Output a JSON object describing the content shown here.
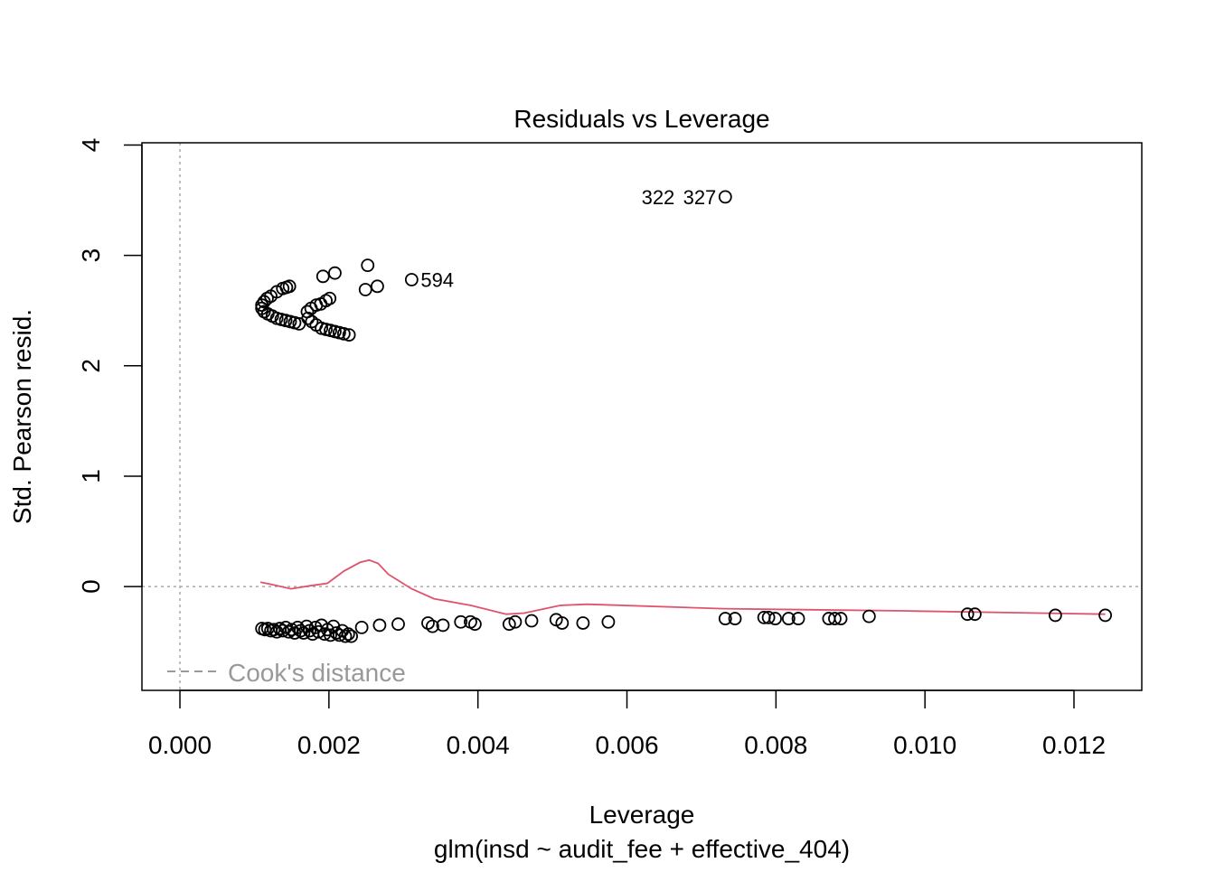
{
  "chart_data": {
    "type": "scatter",
    "title": "Residuals vs Leverage",
    "xlabel": "Leverage",
    "ylabel": "Std. Pearson resid.",
    "subtitle": "glm(insd ~ audit_fee + effective_404)",
    "xlim": [
      -0.00051,
      0.01291
    ],
    "ylim": [
      -0.94,
      4.02
    ],
    "x_ticks": [
      0,
      0.002,
      0.004,
      0.006,
      0.008,
      0.01,
      0.012
    ],
    "x_tick_labels": [
      "0.000",
      "0.002",
      "0.004",
      "0.006",
      "0.008",
      "0.010",
      "0.012"
    ],
    "y_ticks": [
      0,
      1,
      2,
      3,
      4
    ],
    "y_tick_labels": [
      "0",
      "1",
      "2",
      "3",
      "4"
    ],
    "legend": {
      "label": "Cook's distance",
      "placement": "bottom-left",
      "color": "#999999"
    },
    "smooth_color": "#DF536B",
    "points": [
      [
        0.00732,
        3.53
      ],
      [
        0.00252,
        2.91
      ],
      [
        0.00208,
        2.84
      ],
      [
        0.00192,
        2.81
      ],
      [
        0.00311,
        2.78
      ],
      [
        0.00265,
        2.72
      ],
      [
        0.00249,
        2.69
      ],
      [
        0.0011,
        2.55
      ],
      [
        0.00113,
        2.58
      ],
      [
        0.00117,
        2.61
      ],
      [
        0.00122,
        2.63
      ],
      [
        0.0013,
        2.67
      ],
      [
        0.00138,
        2.7
      ],
      [
        0.00143,
        2.71
      ],
      [
        0.00147,
        2.72
      ],
      [
        0.0011,
        2.52
      ],
      [
        0.00113,
        2.49
      ],
      [
        0.00118,
        2.47
      ],
      [
        0.00124,
        2.45
      ],
      [
        0.0013,
        2.43
      ],
      [
        0.00136,
        2.42
      ],
      [
        0.00142,
        2.41
      ],
      [
        0.00148,
        2.4
      ],
      [
        0.00154,
        2.39
      ],
      [
        0.0016,
        2.38
      ],
      [
        0.00171,
        2.49
      ],
      [
        0.00176,
        2.52
      ],
      [
        0.00183,
        2.55
      ],
      [
        0.00189,
        2.56
      ],
      [
        0.00196,
        2.59
      ],
      [
        0.00201,
        2.61
      ],
      [
        0.00172,
        2.43
      ],
      [
        0.00177,
        2.4
      ],
      [
        0.00183,
        2.37
      ],
      [
        0.0019,
        2.34
      ],
      [
        0.00196,
        2.33
      ],
      [
        0.00202,
        2.32
      ],
      [
        0.00208,
        2.31
      ],
      [
        0.00214,
        2.3
      ],
      [
        0.0022,
        2.29
      ],
      [
        0.00227,
        2.28
      ],
      [
        0.0011,
        -0.38
      ],
      [
        0.00114,
        -0.39
      ],
      [
        0.00118,
        -0.38
      ],
      [
        0.00122,
        -0.4
      ],
      [
        0.00126,
        -0.39
      ],
      [
        0.0013,
        -0.41
      ],
      [
        0.00134,
        -0.38
      ],
      [
        0.00138,
        -0.4
      ],
      [
        0.00142,
        -0.37
      ],
      [
        0.00146,
        -0.41
      ],
      [
        0.0015,
        -0.39
      ],
      [
        0.00154,
        -0.42
      ],
      [
        0.00158,
        -0.37
      ],
      [
        0.00162,
        -0.4
      ],
      [
        0.00166,
        -0.42
      ],
      [
        0.0017,
        -0.36
      ],
      [
        0.00174,
        -0.4
      ],
      [
        0.00178,
        -0.43
      ],
      [
        0.00182,
        -0.37
      ],
      [
        0.00186,
        -0.41
      ],
      [
        0.0019,
        -0.35
      ],
      [
        0.00194,
        -0.43
      ],
      [
        0.00198,
        -0.39
      ],
      [
        0.00202,
        -0.44
      ],
      [
        0.00206,
        -0.36
      ],
      [
        0.0021,
        -0.42
      ],
      [
        0.00214,
        -0.44
      ],
      [
        0.00218,
        -0.4
      ],
      [
        0.00222,
        -0.45
      ],
      [
        0.00226,
        -0.43
      ],
      [
        0.0023,
        -0.45
      ],
      [
        0.00244,
        -0.37
      ],
      [
        0.00268,
        -0.35
      ],
      [
        0.00293,
        -0.34
      ],
      [
        0.00333,
        -0.33
      ],
      [
        0.00339,
        -0.36
      ],
      [
        0.00353,
        -0.35
      ],
      [
        0.00377,
        -0.32
      ],
      [
        0.0039,
        -0.32
      ],
      [
        0.00396,
        -0.34
      ],
      [
        0.00442,
        -0.34
      ],
      [
        0.0045,
        -0.32
      ],
      [
        0.00472,
        -0.31
      ],
      [
        0.00505,
        -0.3
      ],
      [
        0.00513,
        -0.33
      ],
      [
        0.00541,
        -0.33
      ],
      [
        0.00575,
        -0.32
      ],
      [
        0.00732,
        -0.29
      ],
      [
        0.00745,
        -0.29
      ],
      [
        0.00784,
        -0.28
      ],
      [
        0.0079,
        -0.28
      ],
      [
        0.00799,
        -0.29
      ],
      [
        0.00817,
        -0.29
      ],
      [
        0.0083,
        -0.29
      ],
      [
        0.00871,
        -0.29
      ],
      [
        0.00879,
        -0.29
      ],
      [
        0.00887,
        -0.29
      ],
      [
        0.00925,
        -0.27
      ],
      [
        0.01057,
        -0.25
      ],
      [
        0.01067,
        -0.25
      ],
      [
        0.01175,
        -0.26
      ],
      [
        0.01242,
        -0.26
      ]
    ],
    "labeled_points": [
      {
        "label": "327",
        "x": 0.00732,
        "y": 3.53
      },
      {
        "label": "322",
        "x": 0.00732,
        "y": 3.53
      },
      {
        "label": "594",
        "x": 0.00311,
        "y": 2.78
      }
    ],
    "smooth": [
      [
        0.00108,
        0.04
      ],
      [
        0.00123,
        0.02
      ],
      [
        0.00149,
        -0.02
      ],
      [
        0.00177,
        0.01
      ],
      [
        0.00198,
        0.03
      ],
      [
        0.0022,
        0.14
      ],
      [
        0.00242,
        0.22
      ],
      [
        0.00254,
        0.24
      ],
      [
        0.00266,
        0.21
      ],
      [
        0.0028,
        0.11
      ],
      [
        0.00311,
        -0.02
      ],
      [
        0.00341,
        -0.11
      ],
      [
        0.0039,
        -0.17
      ],
      [
        0.00438,
        -0.25
      ],
      [
        0.00462,
        -0.24
      ],
      [
        0.00511,
        -0.17
      ],
      [
        0.00547,
        -0.16
      ],
      [
        0.00729,
        -0.2
      ],
      [
        0.00972,
        -0.22
      ],
      [
        0.01242,
        -0.25
      ]
    ]
  }
}
